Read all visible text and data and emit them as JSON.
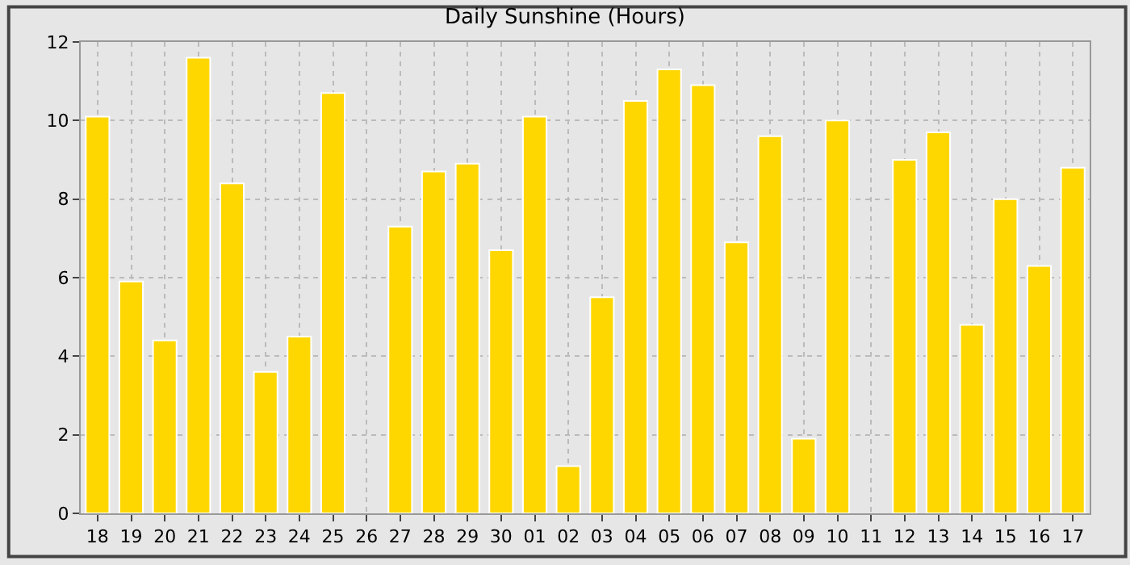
{
  "chart_data": {
    "type": "bar",
    "title": "Daily Sunshine (Hours)",
    "categories": [
      "18",
      "19",
      "20",
      "21",
      "22",
      "23",
      "24",
      "25",
      "26",
      "27",
      "28",
      "29",
      "30",
      "01",
      "02",
      "03",
      "04",
      "05",
      "06",
      "07",
      "08",
      "09",
      "10",
      "11",
      "12",
      "13",
      "14",
      "15",
      "16",
      "17"
    ],
    "values": [
      10.1,
      5.9,
      4.4,
      11.6,
      8.4,
      3.6,
      4.5,
      10.7,
      0,
      7.3,
      8.7,
      8.9,
      6.7,
      10.1,
      1.2,
      5.5,
      10.5,
      11.3,
      10.9,
      6.9,
      9.6,
      1.9,
      10.0,
      0,
      9.0,
      9.7,
      4.8,
      8.0,
      6.3,
      8.8
    ],
    "color": "#ffd700",
    "ylim": [
      0,
      12
    ],
    "yticks": [
      0,
      2,
      4,
      6,
      8,
      10,
      12
    ],
    "grid": true
  }
}
